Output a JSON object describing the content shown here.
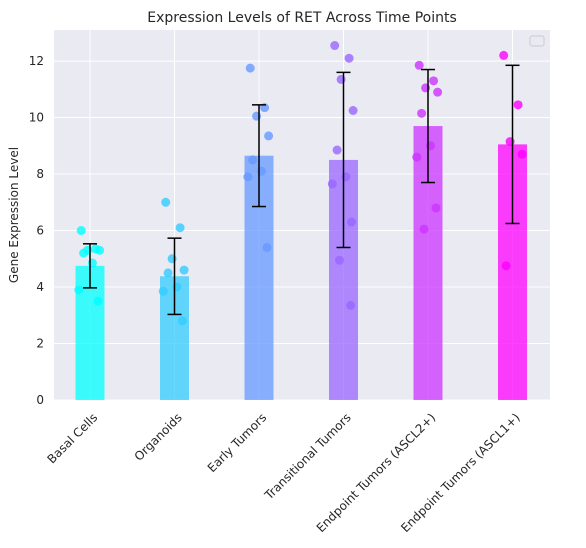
{
  "chart_data": {
    "type": "bar",
    "title": "Expression Levels of RET Across Time Points",
    "xlabel": "",
    "ylabel": "Gene Expression Level",
    "ylim": [
      0,
      13.1
    ],
    "yticks": [
      0,
      2,
      4,
      6,
      8,
      10,
      12
    ],
    "grid": true,
    "legend": "top-right, empty",
    "categories": [
      "Basal Cells",
      "Organoids",
      "Early Tumors",
      "Transitional Tumors",
      "Endpoint Tumors (ASCL2+)",
      "Endpoint Tumors (ASCL1+)"
    ],
    "values": [
      4.75,
      4.38,
      8.65,
      8.5,
      9.7,
      9.05
    ],
    "errors": [
      0.78,
      1.35,
      1.8,
      3.1,
      2.0,
      2.8
    ],
    "colors": [
      "#00ffff",
      "#33ccff",
      "#6699ff",
      "#9966ff",
      "#cc33ff",
      "#ff00ff"
    ],
    "points": [
      [
        6.0,
        5.35,
        5.3,
        5.3,
        5.2,
        4.85,
        3.9,
        3.5
      ],
      [
        7.0,
        6.1,
        5.0,
        4.6,
        4.5,
        4.0,
        3.85,
        2.8
      ],
      [
        11.75,
        10.35,
        10.05,
        9.35,
        8.5,
        8.1,
        7.9,
        5.4
      ],
      [
        12.55,
        12.1,
        11.35,
        10.25,
        8.85,
        7.9,
        7.65,
        6.3,
        4.95,
        3.35
      ],
      [
        11.85,
        11.3,
        11.05,
        10.9,
        10.15,
        9.0,
        8.6,
        6.8,
        6.05
      ],
      [
        12.2,
        10.45,
        9.15,
        8.7,
        4.75
      ]
    ]
  }
}
